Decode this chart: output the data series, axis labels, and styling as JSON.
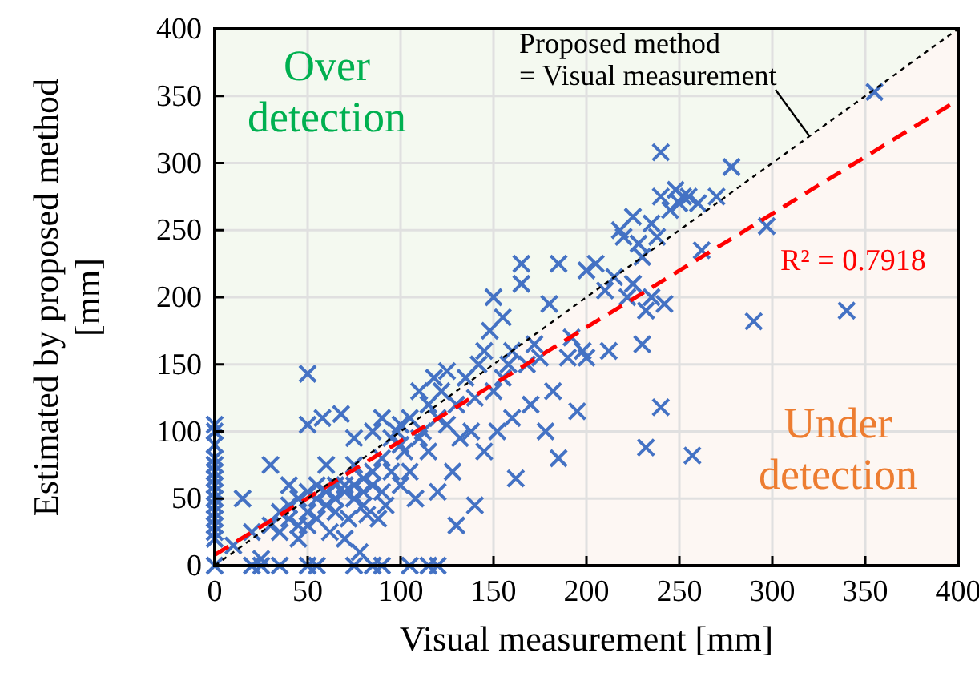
{
  "chart_data": {
    "type": "scatter",
    "xlabel": "Visual measurement [mm]",
    "ylabel": "Estimated by proposed method\n[mm]",
    "xlim": [
      0,
      400
    ],
    "ylim": [
      0,
      400
    ],
    "xticks": [
      0,
      50,
      100,
      150,
      200,
      250,
      300,
      350,
      400
    ],
    "yticks": [
      0,
      50,
      100,
      150,
      200,
      250,
      300,
      350,
      400
    ],
    "grid": true,
    "annotations": [
      "Over\ndetection",
      "Under\ndetection"
    ],
    "series": [
      {
        "color": "#4472c4",
        "marker": "cross",
        "x": [
          0,
          0,
          0,
          0,
          0,
          0,
          0,
          0,
          0,
          0,
          0,
          0,
          0,
          0,
          0,
          0,
          0,
          20,
          25,
          35,
          50,
          55,
          75,
          85,
          90,
          105,
          115,
          120,
          10,
          15,
          20,
          25,
          30,
          30,
          35,
          35,
          40,
          40,
          40,
          45,
          45,
          45,
          50,
          50,
          50,
          50,
          50,
          55,
          55,
          55,
          58,
          60,
          60,
          60,
          62,
          65,
          65,
          65,
          68,
          70,
          70,
          70,
          72,
          75,
          75,
          75,
          75,
          78,
          80,
          80,
          80,
          82,
          85,
          85,
          85,
          88,
          90,
          90,
          90,
          92,
          95,
          95,
          98,
          100,
          100,
          100,
          102,
          105,
          105,
          108,
          110,
          110,
          112,
          115,
          115,
          118,
          120,
          120,
          122,
          125,
          125,
          128,
          130,
          130,
          132,
          135,
          138,
          140,
          140,
          142,
          145,
          145,
          148,
          150,
          150,
          152,
          155,
          155,
          158,
          160,
          160,
          162,
          165,
          165,
          168,
          170,
          172,
          175,
          178,
          180,
          182,
          185,
          185,
          190,
          192,
          195,
          198,
          200,
          200,
          205,
          210,
          212,
          215,
          218,
          220,
          222,
          225,
          225,
          228,
          230,
          230,
          232,
          232,
          235,
          235,
          238,
          240,
          240,
          240,
          242,
          245,
          248,
          250,
          252,
          255,
          257,
          260,
          262,
          270,
          278,
          290,
          297,
          340,
          355
        ],
        "values": [
          0,
          25,
          30,
          35,
          40,
          45,
          50,
          55,
          60,
          65,
          70,
          75,
          80,
          90,
          100,
          105,
          20,
          0,
          0,
          0,
          0,
          0,
          0,
          0,
          0,
          0,
          0,
          0,
          15,
          50,
          25,
          5,
          30,
          75,
          40,
          25,
          35,
          45,
          60,
          30,
          50,
          20,
          55,
          40,
          105,
          143,
          30,
          50,
          60,
          35,
          110,
          45,
          55,
          75,
          25,
          50,
          60,
          40,
          113,
          55,
          60,
          20,
          35,
          50,
          60,
          95,
          75,
          10,
          55,
          65,
          45,
          38,
          60,
          70,
          100,
          35,
          55,
          80,
          110,
          45,
          95,
          70,
          100,
          90,
          105,
          60,
          85,
          110,
          70,
          50,
          95,
          130,
          100,
          120,
          85,
          140,
          110,
          55,
          130,
          105,
          145,
          70,
          120,
          30,
          95,
          140,
          100,
          125,
          45,
          150,
          160,
          85,
          175,
          130,
          200,
          100,
          140,
          185,
          150,
          160,
          110,
          65,
          210,
          225,
          150,
          120,
          165,
          155,
          100,
          195,
          130,
          225,
          80,
          155,
          170,
          115,
          160,
          155,
          220,
          225,
          205,
          160,
          215,
          250,
          245,
          200,
          210,
          260,
          240,
          230,
          165,
          88,
          190,
          255,
          200,
          245,
          275,
          308,
          118,
          195,
          265,
          280,
          270,
          275,
          275,
          82,
          270,
          235,
          275,
          297,
          182,
          253,
          190,
          353
        ]
      },
      {
        "type": "line",
        "name": "R² = 0.7918",
        "color": "#ff0000",
        "line_style": "dashed",
        "x": [
          0,
          400
        ],
        "values": [
          8,
          347
        ]
      },
      {
        "type": "line",
        "name": "Proposed method\n= Visual measurement",
        "color": "#000000",
        "line_style": "dotted",
        "x": [
          0,
          400
        ],
        "values": [
          0,
          400
        ]
      }
    ]
  }
}
